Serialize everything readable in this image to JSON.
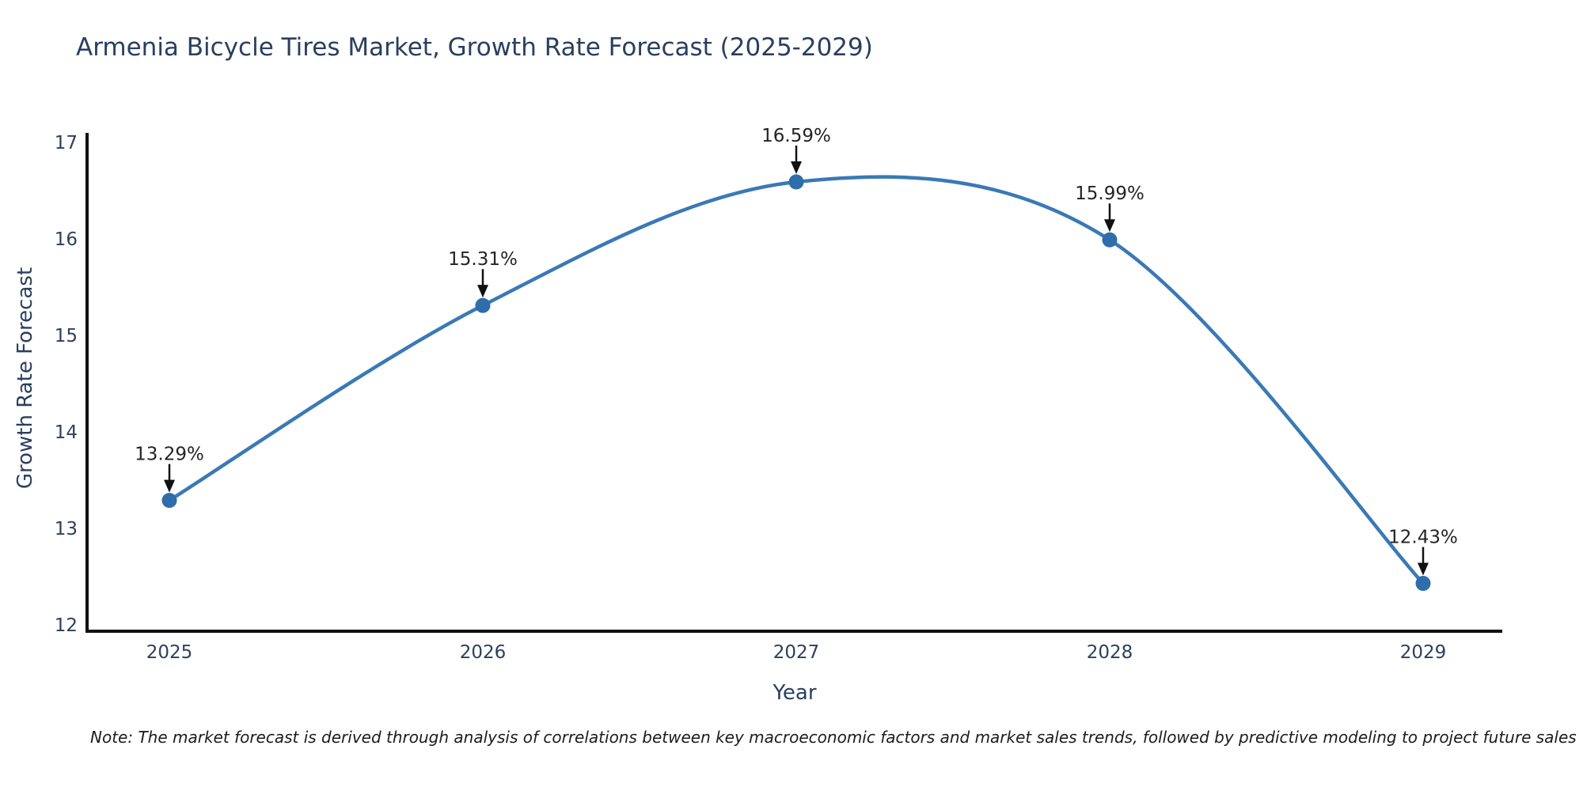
{
  "chart_data": {
    "type": "line",
    "line_shape": "spline",
    "title": "Armenia Bicycle Tires Market, Growth Rate Forecast (2025-2029)",
    "xlabel": "Year",
    "ylabel": "Growth Rate Forecast",
    "x": [
      2025,
      2026,
      2027,
      2028,
      2029
    ],
    "values": [
      13.29,
      15.31,
      16.59,
      15.99,
      12.43
    ],
    "point_labels": [
      "13.29%",
      "15.31%",
      "16.59%",
      "15.99%",
      "12.43%"
    ],
    "xticks": [
      "2025",
      "2026",
      "2027",
      "2028",
      "2029"
    ],
    "yticks": [
      12,
      13,
      14,
      15,
      16,
      17
    ],
    "ylim": [
      11.93,
      17.1
    ],
    "grid": false,
    "legend": "none",
    "colors": {
      "line": "#3a79b5",
      "marker": "#2f6dab",
      "axis": "#111111",
      "title_text": "#2a3f5f",
      "tick_text": "#2e3f5c",
      "annotation_text": "#242424",
      "arrow": "#111111",
      "background": "#ffffff"
    },
    "note": "Note: The market forecast is derived through analysis of correlations between key macroeconomic factors and market sales trends, followed by predictive modeling to project future sales"
  }
}
